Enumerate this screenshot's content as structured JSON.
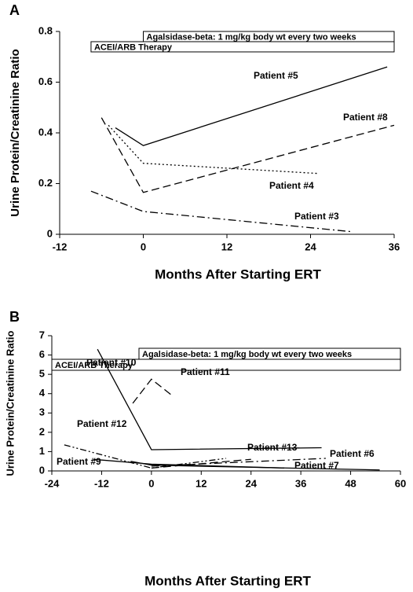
{
  "chart_data": [
    {
      "type": "line",
      "panel": "A",
      "xlabel": "Months After Starting ERT",
      "ylabel": "Urine Protein/Creatinine Ratio",
      "xlim": [
        -12,
        36
      ],
      "xticks": [
        -12,
        0,
        12,
        24,
        36
      ],
      "ylim": [
        0,
        0.8
      ],
      "yticks": [
        0,
        0.2,
        0.4,
        0.6,
        0.8
      ],
      "bars": [
        {
          "label": "Agalsidase-beta: 1 mg/kg body wt every two weeks",
          "start": 0,
          "end": 36
        },
        {
          "label": "ACEI/ARB Therapy",
          "start": -7.5,
          "end": 36
        }
      ],
      "series": [
        {
          "name": "Patient #5",
          "color": "#000000",
          "dash": "solid",
          "x": [
            -4,
            0,
            35
          ],
          "values": [
            0.42,
            0.35,
            0.66
          ]
        },
        {
          "name": "Patient #8",
          "color": "#000000",
          "dash": "dashed",
          "x": [
            -6,
            0,
            36
          ],
          "values": [
            0.46,
            0.165,
            0.43
          ]
        },
        {
          "name": "Patient #4",
          "color": "#000000",
          "dash": "dotted",
          "x": [
            -5,
            0,
            25
          ],
          "values": [
            0.43,
            0.28,
            0.24
          ]
        },
        {
          "name": "Patient #3",
          "color": "#000000",
          "dash": "dashdot",
          "x": [
            -7.5,
            0,
            30
          ],
          "values": [
            0.17,
            0.09,
            0.01
          ]
        }
      ]
    },
    {
      "type": "line",
      "panel": "B",
      "xlabel": "Months After Starting ERT",
      "ylabel": "Urine Protein/Creatinine Ratio",
      "xlim": [
        -24,
        60
      ],
      "xticks": [
        -24,
        -12,
        0,
        12,
        24,
        36,
        48,
        60
      ],
      "ylim": [
        0,
        7
      ],
      "yticks": [
        0,
        1,
        2,
        3,
        4,
        5,
        6,
        7
      ],
      "bars": [
        {
          "label": "Agalsidase-beta: 1 mg/kg body wt every two weeks",
          "start": -3,
          "end": 60
        },
        {
          "label": "ACEI/ARB Therapy",
          "start": -24,
          "end": 60
        }
      ],
      "series": [
        {
          "name": "Patient #10",
          "color": "#000000",
          "dash": "solid",
          "x": [
            -13,
            0,
            41
          ],
          "values": [
            6.3,
            1.1,
            1.2
          ]
        },
        {
          "name": "Patient #11",
          "color": "#000000",
          "dash": "dashed",
          "x": [
            -4.5,
            0,
            5
          ],
          "values": [
            3.5,
            4.75,
            3.9
          ]
        },
        {
          "name": "Patient #12",
          "color": "#000000",
          "dash": "dashdotdot",
          "x": [
            -21,
            0,
            18
          ],
          "values": [
            1.35,
            0.15,
            0.65
          ]
        },
        {
          "name": "Patient #9",
          "color": "#000000",
          "dash": "solid",
          "x": [
            -14,
            0,
            32
          ],
          "values": [
            0.6,
            0.35,
            0.15
          ]
        },
        {
          "name": "Patient #13",
          "color": "#000000",
          "dash": "dashed",
          "x": [
            0,
            24
          ],
          "values": [
            0.15,
            0.6
          ]
        },
        {
          "name": "Patient #6",
          "color": "#000000",
          "dash": "dashdot",
          "x": [
            0,
            42
          ],
          "values": [
            0.25,
            0.65
          ]
        },
        {
          "name": "Patient #7",
          "color": "#000000",
          "dash": "solid",
          "x": [
            -5,
            0,
            55
          ],
          "values": [
            0.5,
            0.3,
            0.05
          ]
        }
      ]
    }
  ]
}
